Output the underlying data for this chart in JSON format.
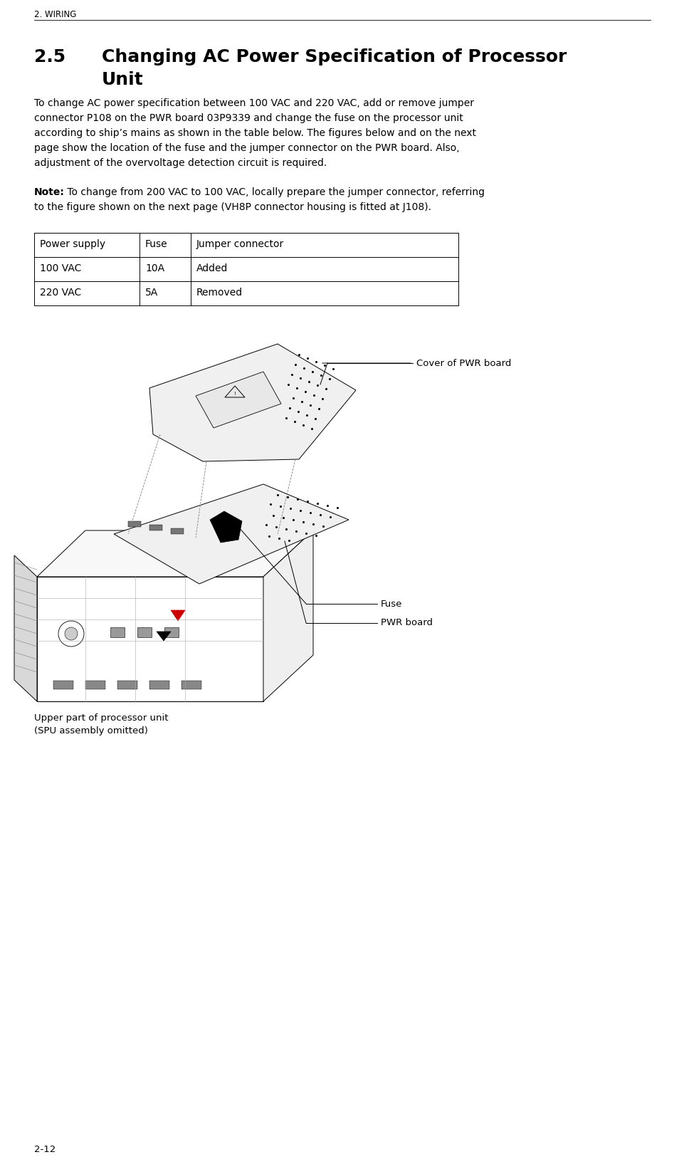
{
  "page_header": "2. WIRING",
  "section_number": "2.5",
  "section_title_line1": "Changing AC Power Specification of Processor",
  "section_title_line2": "Unit",
  "body_lines": [
    "To change AC power specification between 100 VAC and 220 VAC, add or remove jumper",
    "connector P108 on the PWR board 03P9339 and change the fuse on the processor unit",
    "according to ship’s mains as shown in the table below. The figures below and on the next",
    "page show the location of the fuse and the jumper connector on the PWR board. Also,",
    "adjustment of the overvoltage detection circuit is required."
  ],
  "note_prefix": "Note:",
  "note_line1_after": " To change from 200 VAC to 100 VAC, locally prepare the jumper connector, referring",
  "note_line2": "to the figure shown on the next page (VH8P connector housing is fitted at J108).",
  "table_headers": [
    "Power supply",
    "Fuse",
    "Jumper connector"
  ],
  "table_rows": [
    [
      "100 VAC",
      "10A",
      "Added"
    ],
    [
      "220 VAC",
      "5A",
      "Removed"
    ]
  ],
  "label_cover": "Cover of PWR board",
  "label_fuse": "Fuse",
  "label_pwr_board": "PWR board",
  "label_upper_line1": "Upper part of processor unit",
  "label_upper_line2": "(SPU assembly omitted)",
  "page_footer": "2-12",
  "bg_color": "#ffffff",
  "text_color": "#000000"
}
